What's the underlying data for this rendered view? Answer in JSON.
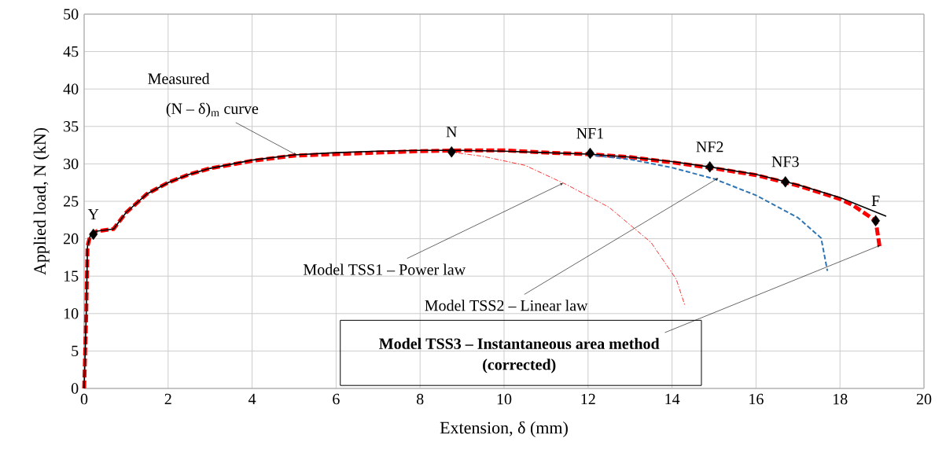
{
  "chart_data": {
    "type": "line",
    "xlabel": "Extension, δ (mm)",
    "ylabel": "Applied load, N (kN)",
    "xlim": [
      0,
      20
    ],
    "xticks": [
      0,
      2,
      4,
      6,
      8,
      10,
      12,
      14,
      16,
      18,
      20
    ],
    "ylim": [
      0,
      50
    ],
    "yticks": [
      0,
      5,
      10,
      15,
      20,
      25,
      30,
      35,
      40,
      45,
      50
    ],
    "grid": true,
    "series": [
      {
        "color": "#000000",
        "line_style": "solid",
        "x": [
          0,
          0.05,
          0.08,
          0.15,
          0.3,
          0.7,
          1,
          1.5,
          2,
          2.5,
          3,
          4,
          5,
          6,
          7,
          8,
          9,
          10,
          11,
          12,
          13,
          14,
          15,
          16,
          17,
          18,
          19.1
        ],
        "values": [
          0,
          10,
          19,
          20.5,
          21,
          21.3,
          23.5,
          26,
          27.5,
          28.6,
          29.4,
          30.5,
          31.2,
          31.5,
          31.7,
          31.8,
          31.8,
          31.7,
          31.5,
          31.3,
          30.9,
          30.3,
          29.5,
          28.6,
          27.2,
          25.5,
          23.0
        ]
      },
      {
        "color": "#2e75b6",
        "line_style": "dashed",
        "x": [
          12,
          13,
          14,
          15,
          16,
          17,
          17.55,
          17.7
        ],
        "values": [
          31.2,
          30.6,
          29.5,
          28,
          25.8,
          22.8,
          20.1,
          15.7
        ]
      },
      {
        "color": "#ff0000",
        "line_style": "dashdot",
        "x": [
          8.7,
          9.5,
          10.5,
          11.5,
          12.5,
          13.5,
          14.1,
          14.3
        ],
        "values": [
          31.6,
          31,
          29.8,
          27.2,
          24.2,
          19.5,
          14.6,
          11.2
        ]
      },
      {
        "color": "#ff0000",
        "line_style": "dashed",
        "x": [
          0,
          0.05,
          0.08,
          0.15,
          0.3,
          0.7,
          1,
          1.5,
          2,
          2.5,
          3,
          4,
          5,
          6,
          7,
          8,
          9,
          10,
          11,
          12,
          13,
          14,
          15,
          16,
          17,
          18,
          18.3,
          18.85,
          18.95
        ],
        "values": [
          0,
          10,
          19,
          20.5,
          21,
          21.3,
          23.5,
          26,
          27.5,
          28.6,
          29.4,
          30.4,
          31.1,
          31.3,
          31.5,
          31.7,
          31.8,
          31.8,
          31.5,
          31.3,
          30.9,
          30.2,
          29.4,
          28.5,
          27.1,
          25.3,
          24.5,
          22.4,
          18.7
        ]
      },
      {
        "type": "scatter",
        "color": "#000000",
        "marker": "diamond",
        "x": [
          0.22,
          8.75,
          12.05,
          14.9,
          16.7,
          18.85
        ],
        "values": [
          20.6,
          31.6,
          31.4,
          29.6,
          27.6,
          22.4
        ]
      }
    ],
    "annotations": [
      "Measured",
      {
        "text": "(N – δ)$_{m}$ curve",
        "x": 5.05,
        "y": 31.2
      },
      {
        "text": "Y",
        "x": 0.22,
        "y": 20.6
      },
      {
        "text": "N",
        "x": 8.75,
        "y": 31.6
      },
      {
        "text": "NF1",
        "x": 12.05,
        "y": 31.4
      },
      {
        "text": "NF2",
        "x": 14.9,
        "y": 29.6
      },
      {
        "text": "NF3",
        "x": 16.7,
        "y": 27.6
      },
      {
        "text": "F",
        "x": 18.85,
        "y": 22.4
      },
      {
        "text": "Model TSS1 – Power law",
        "x": 11.4,
        "y": 27.4
      },
      {
        "text": "Model TSS2 – Linear law",
        "x": 15.1,
        "y": 28.1
      },
      {
        "text": "Model TSS3 – Instantaneous area method",
        "x": 18.95,
        "y": 19.1
      },
      "(corrected)"
    ]
  }
}
